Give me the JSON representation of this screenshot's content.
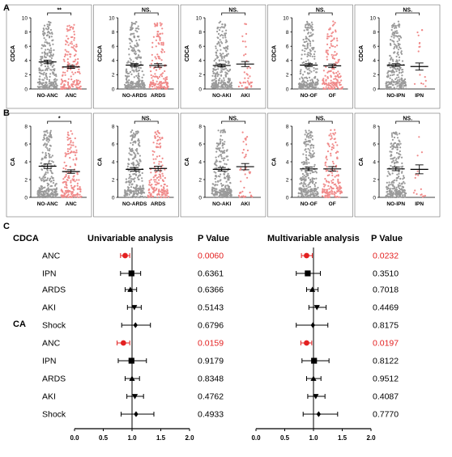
{
  "figure": {
    "panel_letters": [
      "A",
      "B",
      "C"
    ]
  },
  "colors": {
    "grey": "#9a9a9a",
    "pink": "#f08a8a",
    "red": "#e32020",
    "black": "#000000"
  },
  "chart_data": [
    {
      "type": "scatter",
      "panel": "A",
      "ylabel": "CDCA",
      "yticks": [
        0,
        2,
        4,
        6,
        8,
        10
      ],
      "ylim": [
        0,
        10
      ],
      "subplots": [
        {
          "categories": [
            "NO-ANC",
            "ANC"
          ],
          "means": [
            3.8,
            3.1
          ],
          "sem": [
            0.25,
            0.2
          ],
          "significance": "**"
        },
        {
          "categories": [
            "NO-ARDS",
            "ARDS"
          ],
          "means": [
            3.35,
            3.3
          ],
          "sem": [
            0.2,
            0.25
          ],
          "significance": "NS."
        },
        {
          "categories": [
            "NO-AKI",
            "AKI"
          ],
          "means": [
            3.3,
            3.5
          ],
          "sem": [
            0.2,
            0.35
          ],
          "significance": "NS."
        },
        {
          "categories": [
            "NO-OF",
            "OF"
          ],
          "means": [
            3.35,
            3.25
          ],
          "sem": [
            0.2,
            0.25
          ],
          "significance": "NS."
        },
        {
          "categories": [
            "NO-IPN",
            "IPN"
          ],
          "means": [
            3.35,
            3.15
          ],
          "sem": [
            0.2,
            0.5
          ],
          "significance": "NS."
        }
      ]
    },
    {
      "type": "scatter",
      "panel": "B",
      "ylabel": "CA",
      "yticks": [
        0,
        2,
        4,
        6,
        8
      ],
      "ylim": [
        0,
        8
      ],
      "subplots": [
        {
          "categories": [
            "NO-ANC",
            "ANC"
          ],
          "means": [
            3.5,
            2.9
          ],
          "sem": [
            0.25,
            0.2
          ],
          "significance": "*"
        },
        {
          "categories": [
            "NO-ARDS",
            "ARDS"
          ],
          "means": [
            3.15,
            3.25
          ],
          "sem": [
            0.2,
            0.25
          ],
          "significance": "NS."
        },
        {
          "categories": [
            "NO-AKI",
            "AKI"
          ],
          "means": [
            3.15,
            3.45
          ],
          "sem": [
            0.2,
            0.35
          ],
          "significance": "NS."
        },
        {
          "categories": [
            "NO-OF",
            "OF"
          ],
          "means": [
            3.2,
            3.2
          ],
          "sem": [
            0.2,
            0.25
          ],
          "significance": "NS."
        },
        {
          "categories": [
            "NO-IPN",
            "IPN"
          ],
          "means": [
            3.2,
            3.15
          ],
          "sem": [
            0.2,
            0.5
          ],
          "significance": "NS."
        }
      ]
    },
    {
      "type": "forest",
      "panel": "C",
      "columns": [
        "Univariable analysis",
        "P Value",
        "Multivariable analysis",
        "P Value"
      ],
      "xticks": [
        "0.0",
        "0.5",
        "1.0",
        "1.5",
        "2.0"
      ],
      "xlim": [
        0,
        2
      ],
      "groups": [
        {
          "name": "CDCA",
          "rows": [
            {
              "label": "ANC",
              "uni": {
                "or": 0.88,
                "lo": 0.8,
                "hi": 0.96,
                "p": "0.0060"
              },
              "multi": {
                "or": 0.88,
                "lo": 0.79,
                "hi": 0.98,
                "p": "0.0232"
              },
              "significant": true,
              "marker": "circle"
            },
            {
              "label": "IPN",
              "uni": {
                "or": 0.99,
                "lo": 0.8,
                "hi": 1.15,
                "p": "0.6361"
              },
              "multi": {
                "or": 0.9,
                "lo": 0.7,
                "hi": 1.12,
                "p": "0.3510"
              },
              "significant": false,
              "marker": "square"
            },
            {
              "label": "ARDS",
              "uni": {
                "or": 0.97,
                "lo": 0.88,
                "hi": 1.08,
                "p": "0.6366"
              },
              "multi": {
                "or": 0.98,
                "lo": 0.88,
                "hi": 1.08,
                "p": "0.7018"
              },
              "significant": false,
              "marker": "triangle-up"
            },
            {
              "label": "AKI",
              "uni": {
                "or": 1.04,
                "lo": 0.92,
                "hi": 1.16,
                "p": "0.5143"
              },
              "multi": {
                "or": 1.06,
                "lo": 0.92,
                "hi": 1.22,
                "p": "0.4469"
              },
              "significant": false,
              "marker": "triangle-down"
            },
            {
              "label": "Shock",
              "uni": {
                "or": 1.06,
                "lo": 0.82,
                "hi": 1.32,
                "p": "0.6796"
              },
              "multi": {
                "or": 0.99,
                "lo": 0.7,
                "hi": 1.25,
                "p": "0.8175"
              },
              "significant": false,
              "marker": "diamond"
            }
          ]
        },
        {
          "name": "CA",
          "rows": [
            {
              "label": "ANC",
              "uni": {
                "or": 0.85,
                "lo": 0.74,
                "hi": 0.96,
                "p": "0.0159"
              },
              "multi": {
                "or": 0.88,
                "lo": 0.78,
                "hi": 0.97,
                "p": "0.0197"
              },
              "significant": true,
              "marker": "circle"
            },
            {
              "label": "IPN",
              "uni": {
                "or": 0.99,
                "lo": 0.76,
                "hi": 1.25,
                "p": "0.9179"
              },
              "multi": {
                "or": 1.01,
                "lo": 0.8,
                "hi": 1.27,
                "p": "0.8122"
              },
              "significant": false,
              "marker": "square"
            },
            {
              "label": "ARDS",
              "uni": {
                "or": 1.0,
                "lo": 0.88,
                "hi": 1.13,
                "p": "0.8348"
              },
              "multi": {
                "or": 1.0,
                "lo": 0.88,
                "hi": 1.13,
                "p": "0.9512"
              },
              "significant": false,
              "marker": "triangle-up"
            },
            {
              "label": "AKI",
              "uni": {
                "or": 1.05,
                "lo": 0.91,
                "hi": 1.2,
                "p": "0.4762"
              },
              "multi": {
                "or": 1.04,
                "lo": 0.9,
                "hi": 1.2,
                "p": "0.4087"
              },
              "significant": false,
              "marker": "triangle-down"
            },
            {
              "label": "Shock",
              "uni": {
                "or": 1.07,
                "lo": 0.81,
                "hi": 1.38,
                "p": "0.4933"
              },
              "multi": {
                "or": 1.09,
                "lo": 0.82,
                "hi": 1.42,
                "p": "0.7770"
              },
              "significant": false,
              "marker": "diamond"
            }
          ]
        }
      ]
    }
  ]
}
